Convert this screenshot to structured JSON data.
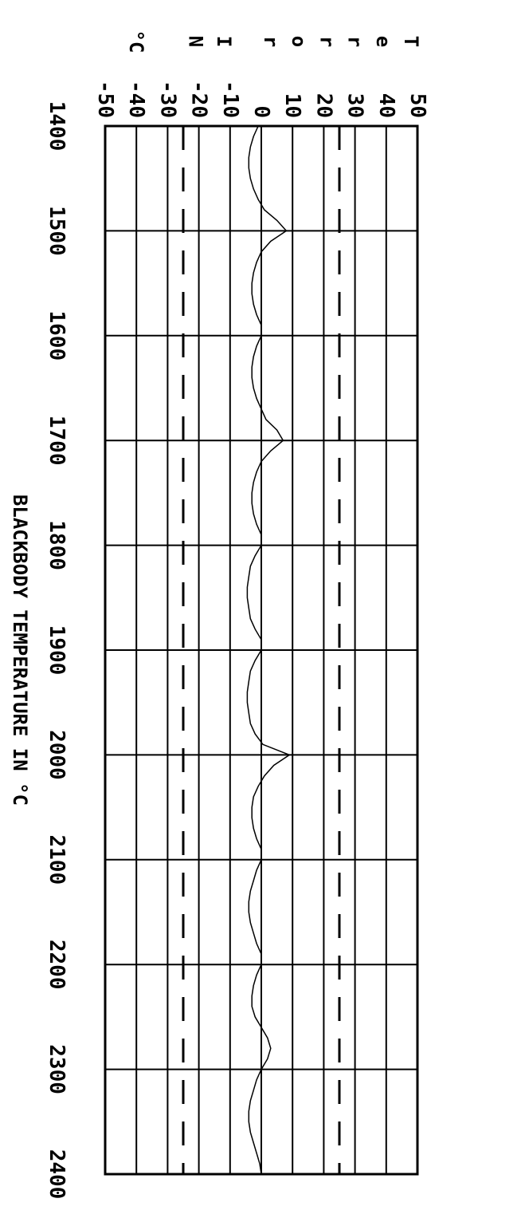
{
  "chart_data": {
    "type": "line",
    "orientation": "rotated-90-clockwise",
    "xlabel": "BLACKBODY TEMPERATURE IN °C",
    "ylabel_title_letters": [
      "T",
      "e",
      "r",
      "r",
      "o",
      "r",
      "I",
      "N",
      "°C"
    ],
    "xlim": [
      1400,
      2400
    ],
    "ylim": [
      -50,
      50
    ],
    "x_ticks": [
      "1400",
      "1500",
      "1600",
      "1700",
      "1800",
      "1900",
      "2000",
      "2100",
      "2200",
      "2300",
      "2400"
    ],
    "y_ticks": [
      "-50",
      "-40",
      "-30",
      "-20",
      "-10",
      "0",
      "10",
      "20",
      "30",
      "40",
      "50"
    ],
    "tolerance_lines": [
      -25,
      25
    ],
    "grid": true,
    "series": [
      {
        "x": [
          1400,
          1410,
          1420,
          1430,
          1440,
          1450,
          1460,
          1470,
          1480,
          1490,
          1500,
          1510,
          1520,
          1530,
          1540,
          1550,
          1560,
          1570,
          1580,
          1590,
          1600,
          1610,
          1620,
          1630,
          1640,
          1650,
          1660,
          1670,
          1680,
          1690,
          1700,
          1710,
          1720,
          1730,
          1740,
          1750,
          1760,
          1770,
          1780,
          1790,
          1800,
          1810,
          1820,
          1830,
          1840,
          1850,
          1860,
          1870,
          1880,
          1890,
          1900,
          1910,
          1920,
          1930,
          1940,
          1950,
          1960,
          1970,
          1980,
          1990,
          2000,
          2010,
          2020,
          2030,
          2040,
          2050,
          2060,
          2070,
          2080,
          2090,
          2100,
          2110,
          2120,
          2130,
          2140,
          2150,
          2160,
          2170,
          2180,
          2190,
          2200,
          2210,
          2220,
          2230,
          2240,
          2250,
          2260,
          2270,
          2280,
          2290,
          2300,
          2310,
          2320,
          2330,
          2340,
          2350,
          2360,
          2370,
          2380,
          2390,
          2400
        ],
        "y": [
          -1,
          -2.5,
          -3.5,
          -4,
          -4,
          -3.5,
          -2.5,
          -1,
          1,
          5,
          8,
          3,
          0,
          -1.5,
          -2.5,
          -3,
          -3,
          -2.5,
          -1.5,
          0,
          0,
          -1.5,
          -2.5,
          -3,
          -3,
          -2.5,
          -1.5,
          0,
          1.5,
          5,
          7,
          3,
          0,
          -1.5,
          -2.5,
          -3,
          -3,
          -2.5,
          -1.5,
          0,
          0,
          -2,
          -3.5,
          -4,
          -4.5,
          -4.5,
          -4,
          -3.5,
          -2,
          0,
          0,
          -2,
          -3.5,
          -4,
          -4.5,
          -4.5,
          -4,
          -3.5,
          -2,
          0.5,
          9,
          4,
          1,
          -1,
          -2.5,
          -3,
          -3,
          -2.5,
          -1.5,
          0,
          0,
          -1.5,
          -2.5,
          -3.5,
          -4,
          -4,
          -3.5,
          -2.5,
          -1.5,
          0,
          0,
          -1.5,
          -2.5,
          -3,
          -3,
          -2,
          0,
          2,
          3,
          2,
          0,
          -1.5,
          -2.5,
          -3.5,
          -4,
          -4,
          -3.5,
          -2.5,
          -1.5,
          -0.5,
          0
        ]
      }
    ]
  }
}
